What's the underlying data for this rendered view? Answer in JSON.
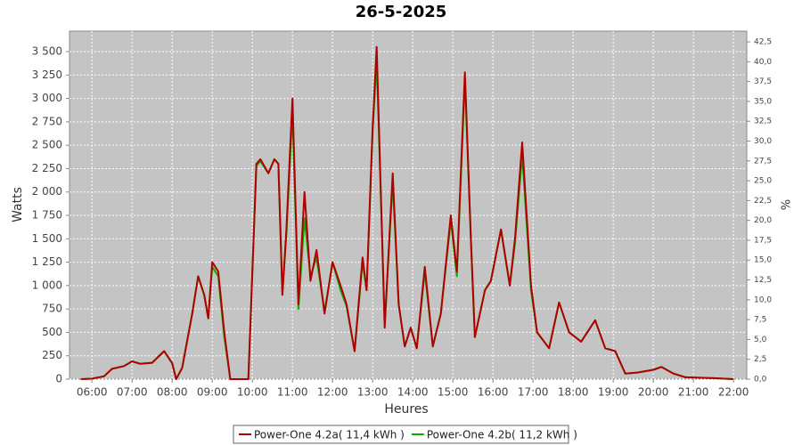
{
  "chart_data": {
    "type": "line",
    "title": "26-5-2025",
    "x_label": "Heures",
    "y_label": "Watts",
    "y2_label": "%",
    "x": [
      5.72,
      6.0,
      6.3,
      6.5,
      6.8,
      7.0,
      7.2,
      7.5,
      7.8,
      8.0,
      8.1,
      8.25,
      8.5,
      8.65,
      8.8,
      8.9,
      9.0,
      9.15,
      9.3,
      9.45,
      9.9,
      10.1,
      10.2,
      10.4,
      10.55,
      10.65,
      10.75,
      10.85,
      11.0,
      11.15,
      11.3,
      11.45,
      11.6,
      11.8,
      12.0,
      12.2,
      12.35,
      12.55,
      12.75,
      12.85,
      13.0,
      13.1,
      13.3,
      13.5,
      13.65,
      13.8,
      13.95,
      14.1,
      14.3,
      14.5,
      14.7,
      14.95,
      15.1,
      15.3,
      15.45,
      15.55,
      15.8,
      15.95,
      16.2,
      16.42,
      16.55,
      16.73,
      16.95,
      17.1,
      17.4,
      17.65,
      17.9,
      18.2,
      18.55,
      18.8,
      19.05,
      19.3,
      19.6,
      20.0,
      20.2,
      20.5,
      20.8,
      21.5,
      22.0
    ],
    "series": [
      {
        "name": "Power-One 4.2b( 11,2 kWh )",
        "color": "#00b000",
        "values": [
          0,
          5,
          30,
          110,
          140,
          190,
          165,
          175,
          300,
          170,
          0,
          120,
          700,
          1100,
          900,
          650,
          1200,
          1100,
          450,
          0,
          0,
          2280,
          2330,
          2200,
          2350,
          2300,
          920,
          1550,
          2850,
          750,
          1720,
          1100,
          1300,
          720,
          1250,
          950,
          780,
          300,
          1250,
          950,
          2650,
          3400,
          600,
          2100,
          800,
          350,
          550,
          330,
          1150,
          350,
          700,
          1700,
          1100,
          3200,
          1500,
          450,
          950,
          1050,
          1600,
          1000,
          1450,
          2400,
          950,
          500,
          330,
          820,
          500,
          400,
          630,
          330,
          300,
          60,
          70,
          100,
          130,
          60,
          20,
          10,
          0
        ]
      },
      {
        "name": "Power-One 4.2a( 11,4 kWh )",
        "color": "#b00000",
        "values": [
          0,
          5,
          30,
          110,
          140,
          190,
          165,
          175,
          300,
          170,
          0,
          120,
          700,
          1100,
          900,
          650,
          1250,
          1150,
          500,
          0,
          0,
          2300,
          2350,
          2200,
          2350,
          2300,
          900,
          1600,
          3000,
          800,
          2000,
          1050,
          1380,
          700,
          1250,
          1000,
          800,
          300,
          1300,
          950,
          2700,
          3550,
          550,
          2200,
          800,
          350,
          550,
          330,
          1200,
          350,
          700,
          1750,
          1150,
          3280,
          1500,
          450,
          950,
          1050,
          1600,
          1000,
          1500,
          2530,
          1000,
          500,
          330,
          820,
          500,
          400,
          630,
          330,
          300,
          60,
          70,
          100,
          130,
          60,
          20,
          10,
          0
        ]
      }
    ],
    "legend_order": [
      1,
      0
    ],
    "xlim": [
      5.44,
      22.33
    ],
    "xticks": [
      {
        "value": 6,
        "label": "06:00"
      },
      {
        "value": 7,
        "label": "07:00"
      },
      {
        "value": 8,
        "label": "08:00"
      },
      {
        "value": 9,
        "label": "09:00"
      },
      {
        "value": 10,
        "label": "10:00"
      },
      {
        "value": 11,
        "label": "11:00"
      },
      {
        "value": 12,
        "label": "12:00"
      },
      {
        "value": 13,
        "label": "13:00"
      },
      {
        "value": 14,
        "label": "14:00"
      },
      {
        "value": 15,
        "label": "15:00"
      },
      {
        "value": 16,
        "label": "16:00"
      },
      {
        "value": 17,
        "label": "17:00"
      },
      {
        "value": 18,
        "label": "18:00"
      },
      {
        "value": 19,
        "label": "19:00"
      },
      {
        "value": 20,
        "label": "20:00"
      },
      {
        "value": 21,
        "label": "21:00"
      },
      {
        "value": 22,
        "label": "22:00"
      }
    ],
    "ylim": [
      0,
      3719
    ],
    "yticks": [
      0,
      250,
      500,
      750,
      {
        "value": 1000,
        "label": "1 000"
      },
      {
        "value": 1250,
        "label": "1 250"
      },
      {
        "value": 1500,
        "label": "1 500"
      },
      {
        "value": 1750,
        "label": "1 750"
      },
      {
        "value": 2000,
        "label": "2 000"
      },
      {
        "value": 2250,
        "label": "2 250"
      },
      {
        "value": 2500,
        "label": "2 500"
      },
      {
        "value": 2750,
        "label": "2 750"
      },
      {
        "value": 3000,
        "label": "3 000"
      },
      {
        "value": 3250,
        "label": "3 250"
      },
      {
        "value": 3500,
        "label": "3 500"
      }
    ],
    "y2lim": [
      0,
      43.85
    ],
    "y2ticks": [
      {
        "value": 0,
        "label": "0,0"
      },
      {
        "value": 2.5,
        "label": "2,5"
      },
      {
        "value": 5,
        "label": "5,0"
      },
      {
        "value": 7.5,
        "label": "7,5"
      },
      {
        "value": 10,
        "label": "10,0"
      },
      {
        "value": 12.5,
        "label": "12,5"
      },
      {
        "value": 15,
        "label": "15,0"
      },
      {
        "value": 17.5,
        "label": "17,5"
      },
      {
        "value": 20,
        "label": "20,0"
      },
      {
        "value": 22.5,
        "label": "22,5"
      },
      {
        "value": 25,
        "label": "25,0"
      },
      {
        "value": 27.5,
        "label": "27,5"
      },
      {
        "value": 30,
        "label": "30,0"
      },
      {
        "value": 32.5,
        "label": "32,5"
      },
      {
        "value": 35,
        "label": "35,0"
      },
      {
        "value": 37.5,
        "label": "37,5"
      },
      {
        "value": 40,
        "label": "40,0"
      },
      {
        "value": 42.5,
        "label": "42,5"
      }
    ],
    "grid": true
  }
}
